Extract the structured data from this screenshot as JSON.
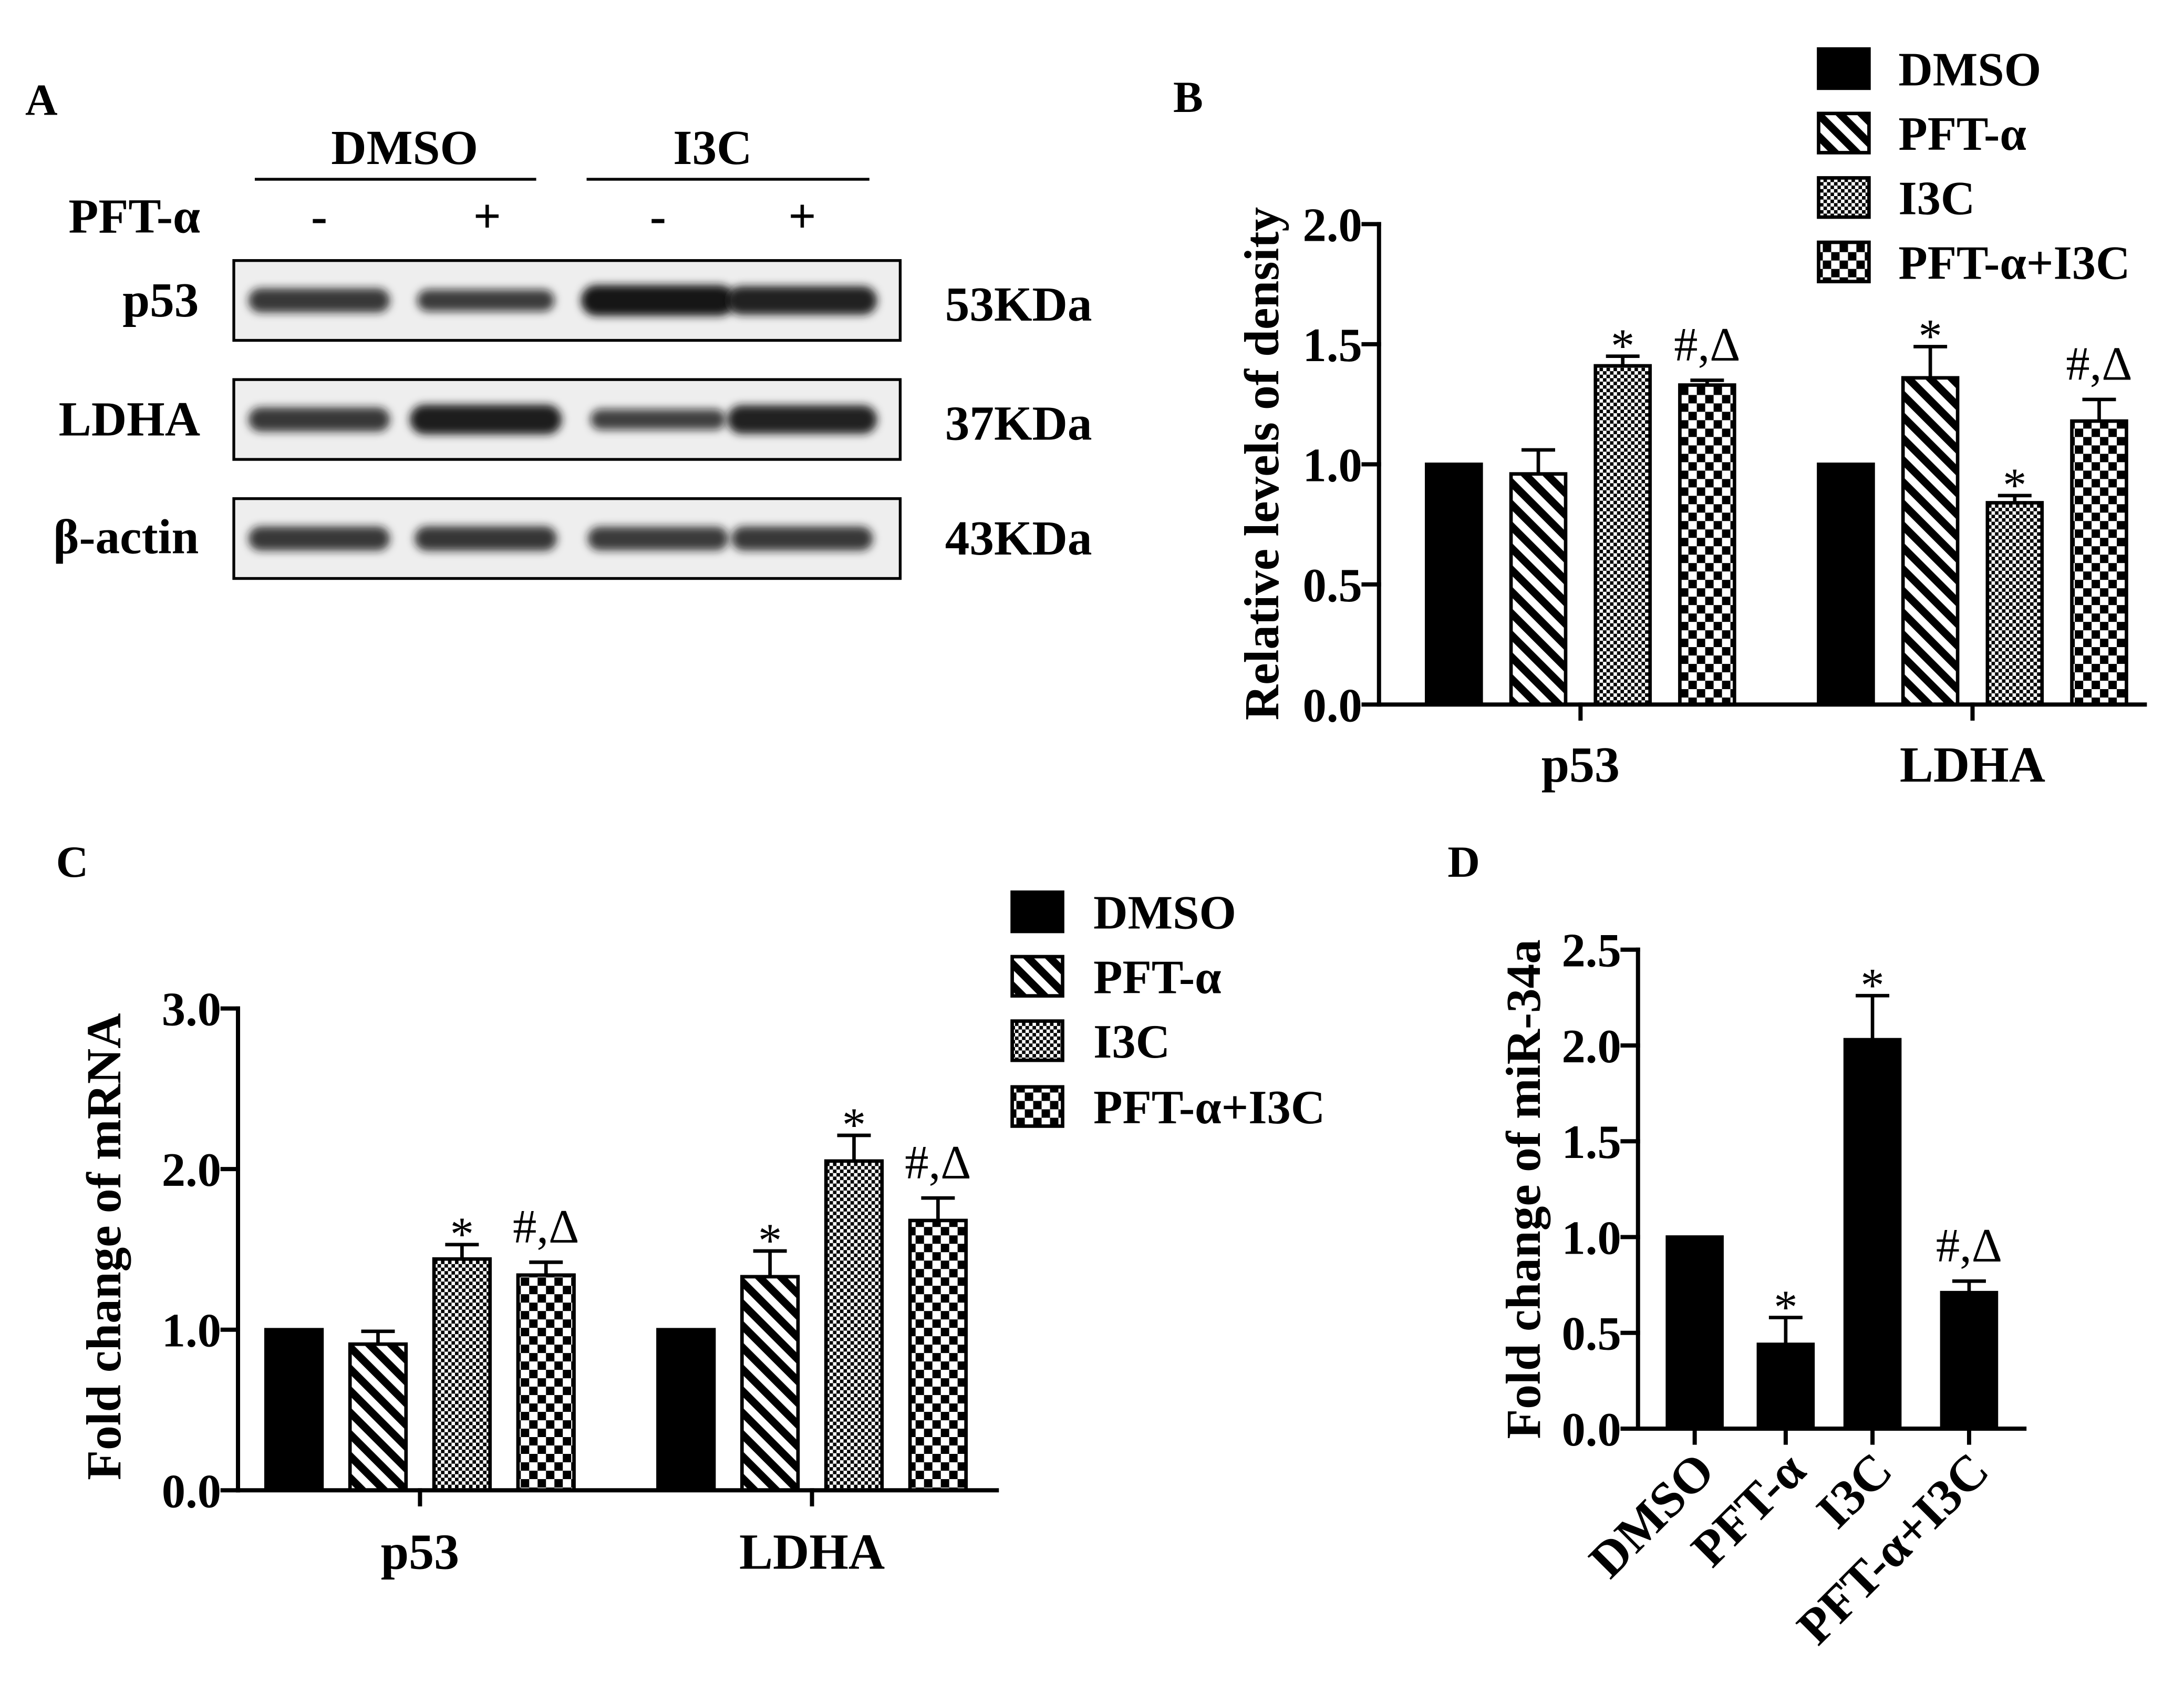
{
  "colors": {
    "ink": "#000000",
    "paper": "#ffffff",
    "membrane": "#eeeeee",
    "band": "#141414"
  },
  "blot": {
    "panel": "A",
    "groups": [
      "DMSO",
      "I3C"
    ],
    "treatment": "PFT-α",
    "lanes": [
      "-",
      "+",
      "-",
      "+"
    ],
    "rows": [
      {
        "label": "p53",
        "size": "53KDa",
        "band_levels": [
          0.7,
          0.6,
          1.0,
          0.9
        ]
      },
      {
        "label": "LDHA",
        "size": "37KDa",
        "band_levels": [
          0.7,
          0.95,
          0.55,
          0.9
        ]
      },
      {
        "label": "β-actin",
        "size": "43KDa",
        "band_levels": [
          0.7,
          0.72,
          0.68,
          0.7
        ]
      }
    ]
  },
  "chart_data": [
    {
      "panel": "B",
      "type": "bar",
      "categories": [
        "p53",
        "LDHA"
      ],
      "ylabel": "Relative levels of density",
      "ylim": [
        0,
        2.0
      ],
      "yticks": [
        "0.0",
        "0.5",
        "1.0",
        "1.5",
        "2.0"
      ],
      "legend": "top-right",
      "series": [
        {
          "name": "DMSO",
          "fill": "solid",
          "values": [
            1.0,
            1.0
          ],
          "errors": [
            0,
            0
          ],
          "marks": [
            "",
            ""
          ]
        },
        {
          "name": "PFT-α",
          "fill": "diagonal-stripes",
          "values": [
            0.96,
            1.36
          ],
          "errors": [
            0.1,
            0.13
          ],
          "marks": [
            "",
            "*"
          ]
        },
        {
          "name": "I3C",
          "fill": "fine-checker",
          "values": [
            1.41,
            0.84
          ],
          "errors": [
            0.04,
            0.03
          ],
          "marks": [
            "*",
            "*"
          ]
        },
        {
          "name": "PFT-α+I3C",
          "fill": "checkerboard",
          "values": [
            1.33,
            1.18
          ],
          "errors": [
            0.02,
            0.09
          ],
          "marks": [
            "#,Δ",
            "#,Δ"
          ]
        }
      ]
    },
    {
      "panel": "C",
      "type": "bar",
      "categories": [
        "p53",
        "LDHA"
      ],
      "ylabel": "Fold change of mRNA",
      "ylim": [
        0,
        3.0
      ],
      "yticks": [
        "0.0",
        "1.0",
        "2.0",
        "3.0"
      ],
      "legend": "top-right",
      "series": [
        {
          "name": "DMSO",
          "fill": "solid",
          "values": [
            1.0,
            1.0
          ],
          "errors": [
            0,
            0
          ],
          "marks": [
            "",
            ""
          ]
        },
        {
          "name": "PFT-α",
          "fill": "diagonal-stripes",
          "values": [
            0.91,
            1.33
          ],
          "errors": [
            0.08,
            0.16
          ],
          "marks": [
            "",
            "*"
          ]
        },
        {
          "name": "I3C",
          "fill": "fine-checker",
          "values": [
            1.44,
            2.05
          ],
          "errors": [
            0.09,
            0.16
          ],
          "marks": [
            "*",
            "*"
          ]
        },
        {
          "name": "PFT-α+I3C",
          "fill": "checkerboard",
          "values": [
            1.34,
            1.68
          ],
          "errors": [
            0.08,
            0.14
          ],
          "marks": [
            "#,Δ",
            "#,Δ"
          ]
        }
      ]
    },
    {
      "panel": "D",
      "type": "bar",
      "categories": [
        "DMSO",
        "PFT-α",
        "I3C",
        "PFT-α+I3C"
      ],
      "ylabel": "Fold change of miR-34a",
      "ylim": [
        0,
        2.5
      ],
      "yticks": [
        "0.0",
        "0.5",
        "1.0",
        "1.5",
        "2.0",
        "2.5"
      ],
      "series": [
        {
          "fill": "solid",
          "values": [
            1.0,
            0.44,
            2.03,
            0.71
          ],
          "errors": [
            0,
            0.14,
            0.23,
            0.06
          ],
          "marks": [
            "",
            "*",
            "*",
            "#,Δ"
          ]
        }
      ]
    }
  ]
}
